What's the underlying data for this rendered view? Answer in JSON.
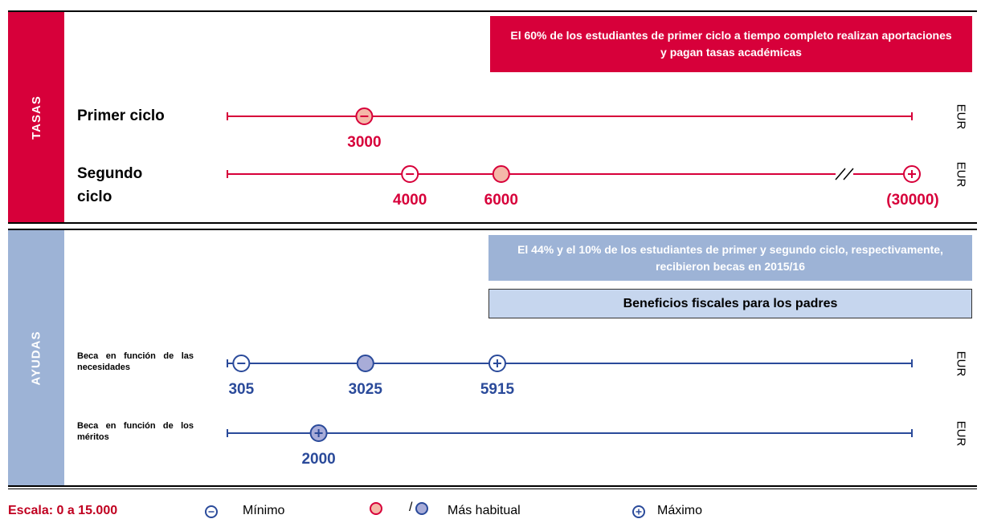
{
  "scale": [
    0,
    15000
  ],
  "tasas": {
    "label": "TASAS",
    "note": "El 60% de los estudiantes de primer ciclo a tiempo completo realizan aportaciones y pagan tasas académicas",
    "rows": [
      {
        "label": "Primer ciclo",
        "unit": "EUR",
        "markers": [
          {
            "value": 3000,
            "kind": "min",
            "filled": true
          }
        ]
      },
      {
        "label": "Segundo ciclo",
        "unit": "EUR",
        "markers": [
          {
            "value": 4000,
            "kind": "min",
            "filled": false
          },
          {
            "value": 6000,
            "kind": "mode",
            "filled": true
          },
          {
            "value": 30000,
            "value_label": "(30000)",
            "kind": "max",
            "filled": false,
            "break": true
          }
        ]
      }
    ]
  },
  "ayudas": {
    "label": "AYUDAS",
    "note": "El 44% y el 10% de los estudiantes de primer y segundo ciclo, respectivamente, recibieron becas en 2015/16",
    "note2": "Beneficios fiscales para los padres",
    "rows": [
      {
        "label": "Beca en función de las necesidades",
        "unit": "EUR",
        "markers": [
          {
            "value": 305,
            "kind": "min",
            "filled": false
          },
          {
            "value": 3025,
            "kind": "mode",
            "filled": true
          },
          {
            "value": 5915,
            "kind": "max",
            "filled": false
          }
        ]
      },
      {
        "label": "Beca en función de los méritos",
        "unit": "EUR",
        "markers": [
          {
            "value": 2000,
            "kind": "max",
            "filled": true
          }
        ]
      }
    ]
  },
  "legend": {
    "scale": "Escala: 0 a 15.000",
    "min": "Mínimo",
    "separator": "/",
    "mode": "Más habitual",
    "max": "Máximo"
  }
}
